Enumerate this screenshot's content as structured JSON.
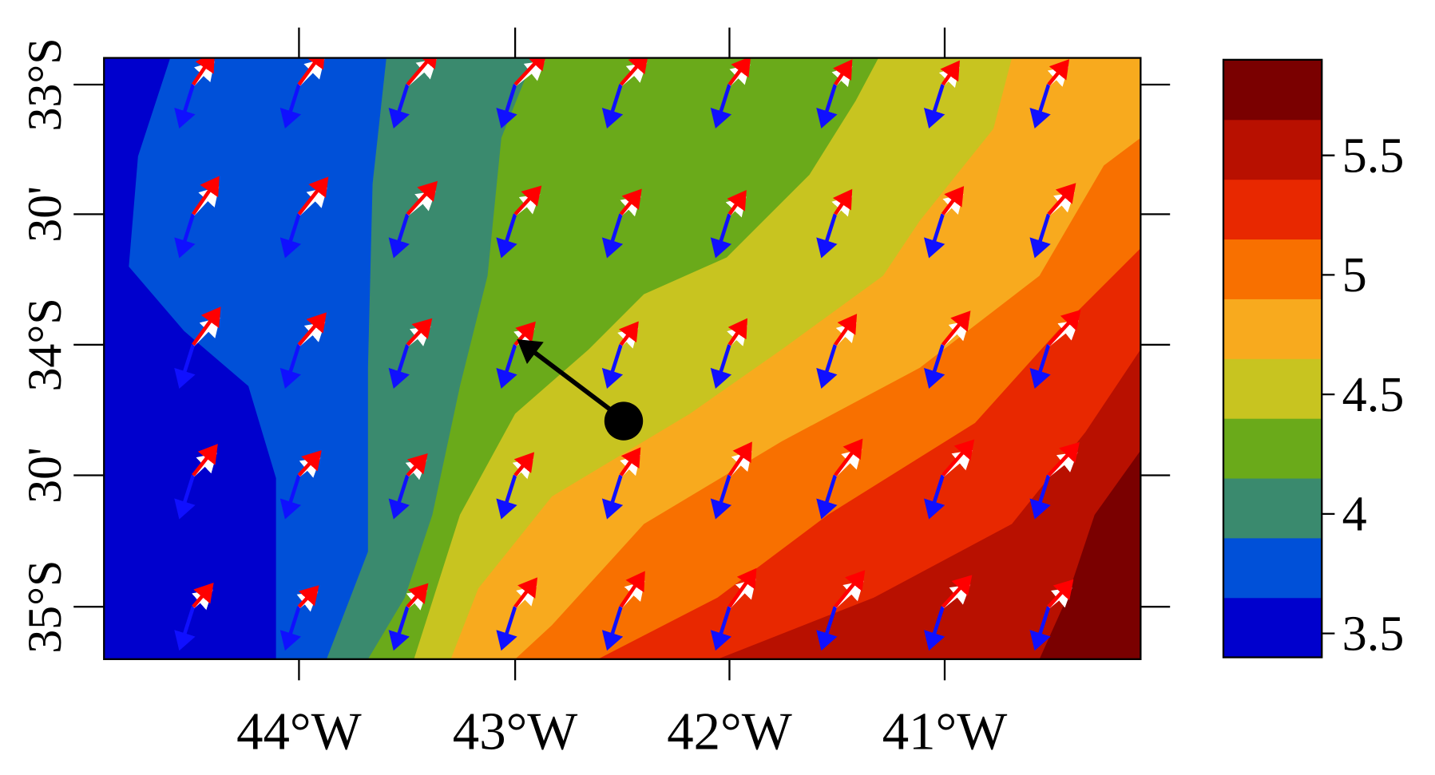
{
  "map": {
    "lon_ticks": [
      "44°W",
      "43°W",
      "42°W",
      "41°W"
    ],
    "lat_ticks": [
      "33°S",
      "30'",
      "34°S",
      "30'",
      "35°S"
    ]
  },
  "colorbar": {
    "lim": [
      3.4,
      5.9
    ],
    "ticks": [
      3.5,
      4,
      4.5,
      5,
      5.5
    ],
    "colors": [
      "#0000cd",
      "#0050d8",
      "#3a8a6e",
      "#6aaa1a",
      "#c8c420",
      "#f8aa1e",
      "#f87000",
      "#e82800",
      "#b81000",
      "#7a0000"
    ]
  }
}
